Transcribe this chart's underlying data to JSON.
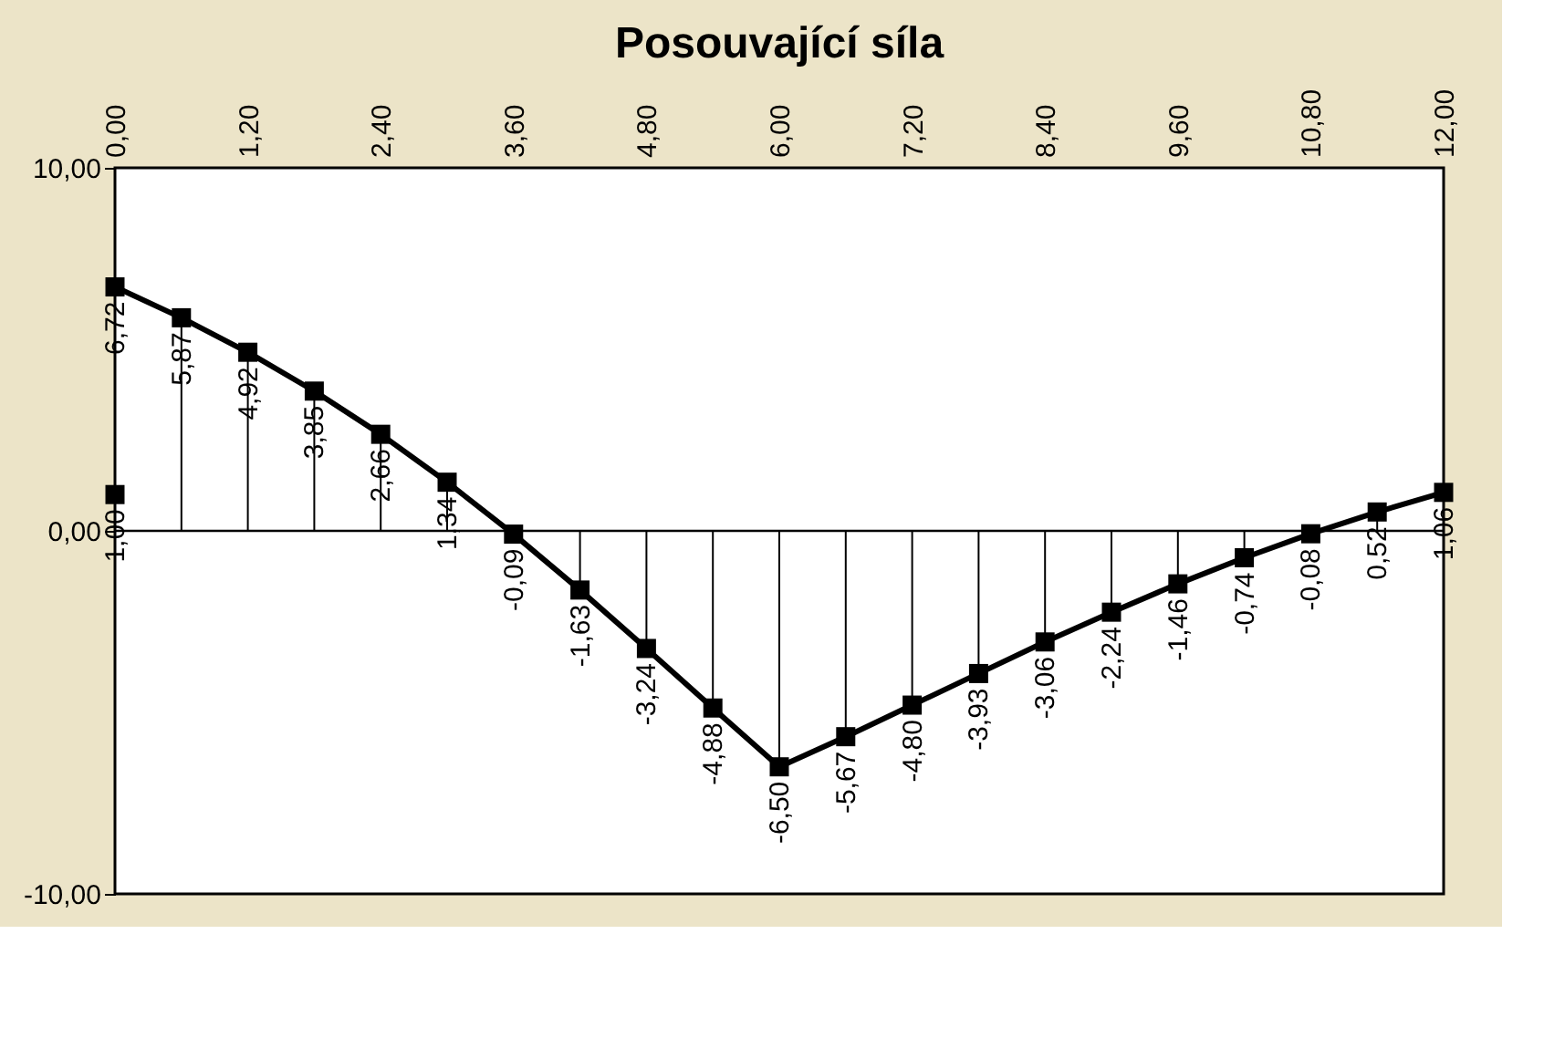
{
  "chart_data": {
    "type": "line",
    "title": "Posouvající síla",
    "xlim": [
      0,
      12
    ],
    "xticks": [
      {
        "value": 0,
        "label": "0,00"
      },
      {
        "value": 1.2,
        "label": "1,20"
      },
      {
        "value": 2.4,
        "label": "2,40"
      },
      {
        "value": 3.6,
        "label": "3,60"
      },
      {
        "value": 4.8,
        "label": "4,80"
      },
      {
        "value": 6,
        "label": "6,00"
      },
      {
        "value": 7.2,
        "label": "7,20"
      },
      {
        "value": 8.4,
        "label": "8,40"
      },
      {
        "value": 9.6,
        "label": "9,60"
      },
      {
        "value": 10.8,
        "label": "10,80"
      },
      {
        "value": 12,
        "label": "12,00"
      }
    ],
    "ylim": [
      -10,
      10
    ],
    "yticks": [
      {
        "value": -10,
        "label": "-10,00"
      },
      {
        "value": 0,
        "label": "0,00"
      },
      {
        "value": 10,
        "label": "10,00"
      }
    ],
    "grid": false,
    "marker": "square",
    "line_style": "solid",
    "ref_lines": [
      {
        "axis": "y",
        "value": 0,
        "color": "#000000"
      }
    ],
    "series": [
      {
        "color": "#000000",
        "x": [
          0,
          0.6,
          1.2,
          1.8,
          2.4,
          3,
          3.6,
          4.2,
          4.8,
          5.4,
          6,
          6.6,
          7.2,
          7.8,
          8.4,
          9,
          9.6,
          10.2,
          10.8,
          11.4,
          12
        ],
        "values": [
          6.72,
          5.87,
          4.92,
          3.85,
          2.66,
          1.34,
          -0.09,
          -1.63,
          -3.24,
          -4.88,
          -6.5,
          -5.67,
          -4.8,
          -3.93,
          -3.06,
          -2.24,
          -1.46,
          -0.74,
          -0.08,
          0.52,
          1.06
        ],
        "value_labels": [
          "6,72",
          "5,87",
          "4,92",
          "3,85",
          "2,66",
          "1,34",
          "-0,09",
          "-1,63",
          "-3,24",
          "-4,88",
          "-6,50",
          "-5,67",
          "-4,80",
          "-3,93",
          "-3,06",
          "-2,24",
          "-1,46",
          "-0,74",
          "-0,08",
          "0,52",
          "1,06"
        ]
      },
      {
        "type": "scatter",
        "color": "#000000",
        "x": [
          0
        ],
        "values": [
          1.0
        ],
        "value_labels": [
          "1,00"
        ]
      }
    ]
  }
}
